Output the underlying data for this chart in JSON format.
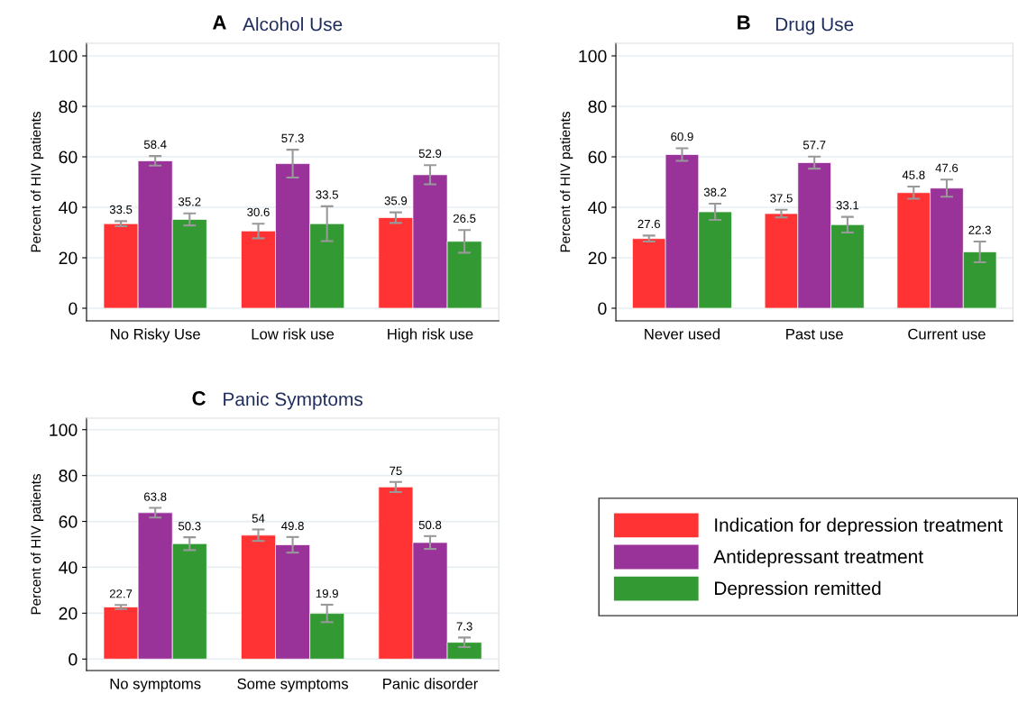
{
  "chart_data": [
    {
      "type": "bar",
      "title": "Alcohol Use",
      "annotations": [
        "A"
      ],
      "ylabel": "Percent of HIV patients",
      "categories": [
        "No Risky Use",
        "Low risk use",
        "High risk use"
      ],
      "ylim": [
        -5,
        105
      ],
      "yticks": [
        0,
        20,
        40,
        60,
        80,
        100
      ],
      "grid": "y",
      "data_labels": true,
      "legend": false,
      "series": [
        {
          "color": "#ff3333",
          "values": [
            33.5,
            30.6,
            35.9
          ],
          "errors": [
            1.0,
            2.9,
            2.1
          ]
        },
        {
          "color": "#993399",
          "values": [
            58.4,
            57.3,
            52.9
          ],
          "errors": [
            1.9,
            5.5,
            3.8
          ]
        },
        {
          "color": "#339933",
          "values": [
            35.2,
            33.5,
            26.5
          ],
          "errors": [
            2.4,
            6.9,
            4.5
          ]
        }
      ]
    },
    {
      "type": "bar",
      "title": "Drug Use",
      "annotations": [
        "B"
      ],
      "ylabel": "Percent of HIV patients",
      "categories": [
        "Never used",
        "Past use",
        "Current use"
      ],
      "ylim": [
        -5,
        105
      ],
      "yticks": [
        0,
        20,
        40,
        60,
        80,
        100
      ],
      "grid": "y",
      "data_labels": true,
      "legend": false,
      "series": [
        {
          "color": "#ff3333",
          "values": [
            27.6,
            37.5,
            45.8
          ],
          "errors": [
            1.2,
            1.5,
            2.4
          ]
        },
        {
          "color": "#993399",
          "values": [
            60.9,
            57.7,
            47.6
          ],
          "errors": [
            2.5,
            2.4,
            3.4
          ]
        },
        {
          "color": "#339933",
          "values": [
            38.2,
            33.1,
            22.3
          ],
          "errors": [
            3.2,
            3.1,
            4.1
          ]
        }
      ]
    },
    {
      "type": "bar",
      "title": "Panic Symptoms",
      "annotations": [
        "C"
      ],
      "ylabel": "Percent of HIV patients",
      "categories": [
        "No symptoms",
        "Some symptoms",
        "Panic disorder"
      ],
      "ylim": [
        -5,
        105
      ],
      "yticks": [
        0,
        20,
        40,
        60,
        80,
        100
      ],
      "grid": "y",
      "data_labels": true,
      "legend": "right",
      "series": [
        {
          "name": "Indication for depression treatment",
          "color": "#ff3333",
          "values": [
            22.7,
            54,
            75
          ],
          "errors": [
            0.9,
            2.5,
            2.2
          ]
        },
        {
          "name": "Antidepressant treatment",
          "color": "#993399",
          "values": [
            63.8,
            49.8,
            50.8
          ],
          "errors": [
            2.1,
            3.4,
            2.8
          ]
        },
        {
          "name": "Depression remitted",
          "color": "#339933",
          "values": [
            50.3,
            19.9,
            7.3
          ],
          "errors": [
            2.8,
            3.8,
            2.1
          ]
        }
      ]
    }
  ]
}
